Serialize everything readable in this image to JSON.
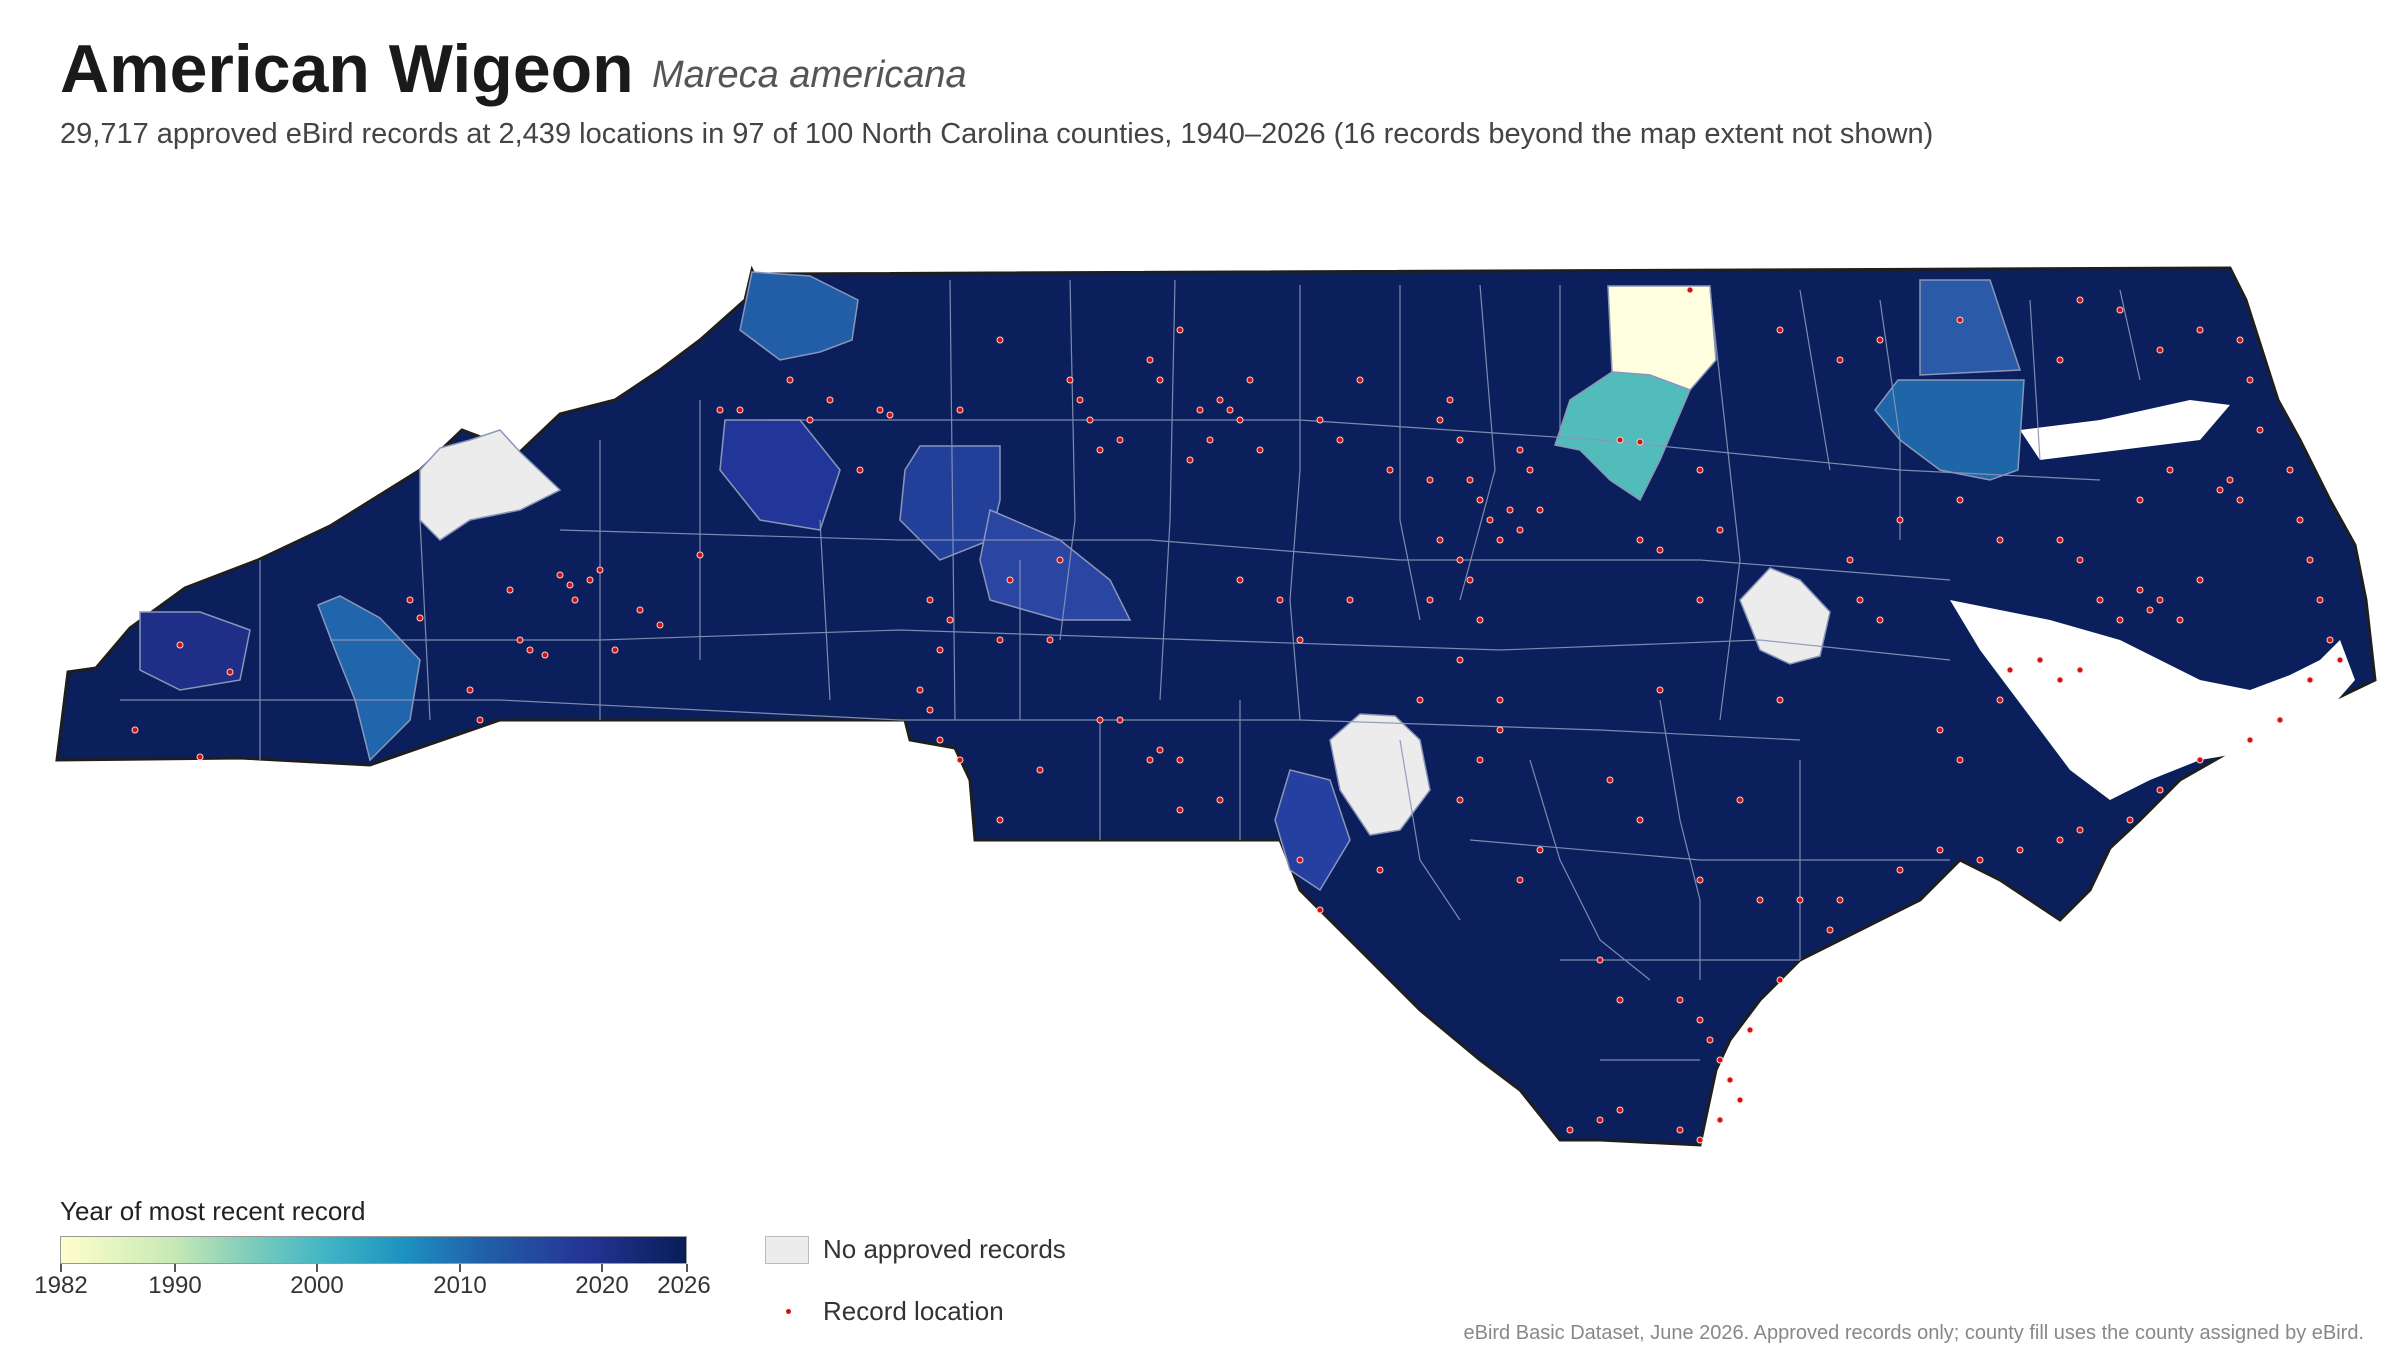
{
  "header": {
    "title": "American Wigeon",
    "scientific_name": "Mareca americana",
    "subtitle": "29,717 approved eBird records at 2,439 locations in 97 of 100 North Carolina counties, 1940–2026 (16 records beyond the map extent not shown)"
  },
  "legend": {
    "title": "Year of most recent record",
    "ticks": [
      "1982",
      "1990",
      "2000",
      "2010",
      "2020",
      "2026"
    ],
    "range": [
      1982,
      2026
    ],
    "no_records_label": "No approved records",
    "record_label": "Record location"
  },
  "colors": {
    "scale": [
      "#ffffcc",
      "#c7e9b4",
      "#7fcdbb",
      "#41b6c4",
      "#1d91c0",
      "#225ea8",
      "#253494",
      "#081d58"
    ],
    "no_records": "#ececec",
    "record_dot": "#cc1111",
    "county_border": "#8a96b8",
    "state_border": "#222222"
  },
  "map_data": {
    "region": "North Carolina",
    "counties_with_records": 97,
    "counties_total": 100,
    "highlighted_counties_note": "Most counties dark navy (recent records ~2020–2026); one county pale yellow (~1982); one teal (~2000); several medium blue (~2010); three grey (no approved records)"
  },
  "footer": {
    "source": "eBird Basic Dataset, June 2026. Approved records only; county fill uses the county assigned by eBird."
  }
}
